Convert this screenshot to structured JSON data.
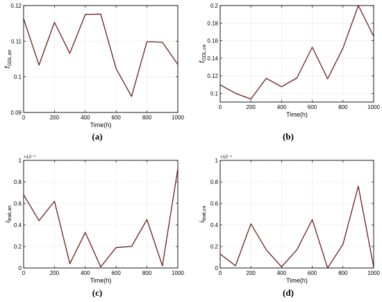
{
  "chart_data": [
    {
      "type": "line",
      "panel_label": "(a)",
      "ylabel_main": "f",
      "ylabel_sub": "GDL,an",
      "xlabel": "Time(h)",
      "exponent": "",
      "xlim": [
        0,
        1000
      ],
      "ylim": [
        0.09,
        0.12
      ],
      "x_ticks": [
        0,
        200,
        400,
        600,
        800,
        1000
      ],
      "x_tick_labels": [
        "0",
        "200",
        "400",
        "600",
        "800",
        "1000"
      ],
      "y_ticks": [
        0.09,
        0.1,
        0.11,
        0.12
      ],
      "y_tick_labels": [
        "0.09",
        "0.1",
        "0.11",
        "0.12"
      ],
      "grid": true,
      "line_color": "#6b1d1d",
      "series": [
        {
          "x": [
            0,
            100,
            200,
            300,
            400,
            500,
            600,
            700,
            800,
            900,
            1000
          ],
          "y": [
            0.1163,
            0.1033,
            0.1153,
            0.1066,
            0.1175,
            0.1176,
            0.1023,
            0.0945,
            0.1099,
            0.1097,
            0.1035
          ]
        }
      ]
    },
    {
      "type": "line",
      "panel_label": "(b)",
      "ylabel_main": "f",
      "ylabel_sub": "GDL,ca",
      "xlabel": "Time(h)",
      "exponent": "",
      "xlim": [
        0,
        1000
      ],
      "ylim": [
        0.09,
        0.2
      ],
      "x_ticks": [
        0,
        200,
        400,
        600,
        800,
        1000
      ],
      "x_tick_labels": [
        "0",
        "200",
        "400",
        "600",
        "800",
        "1000"
      ],
      "y_ticks": [
        0.1,
        0.12,
        0.14,
        0.16,
        0.18,
        0.2
      ],
      "y_tick_labels": [
        "0.1",
        "0.12",
        "0.14",
        "0.16",
        "0.18",
        "0.2"
      ],
      "grid": true,
      "line_color": "#6b1d1d",
      "series": [
        {
          "x": [
            0,
            100,
            200,
            300,
            400,
            500,
            600,
            700,
            800,
            900,
            1000
          ],
          "y": [
            0.1095,
            0.1,
            0.0935,
            0.117,
            0.1075,
            0.1175,
            0.1525,
            0.1165,
            0.1515,
            0.2,
            0.165
          ]
        }
      ]
    },
    {
      "type": "line",
      "panel_label": "(c)",
      "ylabel_main": "i",
      "ylabel_sub": "leak,an",
      "xlabel": "Time(h)",
      "exponent": "×10⁻³",
      "xlim": [
        0,
        1000
      ],
      "ylim": [
        0,
        1
      ],
      "x_ticks": [
        0,
        200,
        400,
        600,
        800,
        1000
      ],
      "x_tick_labels": [
        "0",
        "200",
        "400",
        "600",
        "800",
        "1000"
      ],
      "y_ticks": [
        0,
        0.2,
        0.4,
        0.6,
        0.8,
        1
      ],
      "y_tick_labels": [
        "0",
        "0.2",
        "0.4",
        "0.6",
        "0.8",
        "1"
      ],
      "grid": true,
      "line_color": "#6b1d1d",
      "series": [
        {
          "x": [
            0,
            100,
            200,
            300,
            400,
            500,
            600,
            700,
            800,
            900,
            1000
          ],
          "y": [
            0.68,
            0.44,
            0.62,
            0.04,
            0.33,
            0.01,
            0.19,
            0.2,
            0.45,
            0.02,
            0.92
          ]
        }
      ]
    },
    {
      "type": "line",
      "panel_label": "(d)",
      "ylabel_main": "i",
      "ylabel_sub": "leak,ca",
      "xlabel": "Time(h)",
      "exponent": "×10⁻³",
      "xlim": [
        0,
        1000
      ],
      "ylim": [
        0,
        1
      ],
      "x_ticks": [
        0,
        200,
        400,
        600,
        800,
        1000
      ],
      "x_tick_labels": [
        "0",
        "200",
        "400",
        "600",
        "800",
        "1000"
      ],
      "y_ticks": [
        0,
        0.2,
        0.4,
        0.6,
        0.8,
        1
      ],
      "y_tick_labels": [
        "0",
        "0.2",
        "0.4",
        "0.6",
        "0.8",
        "1"
      ],
      "grid": true,
      "line_color": "#6b1d1d",
      "series": [
        {
          "x": [
            0,
            100,
            200,
            300,
            400,
            500,
            600,
            700,
            800,
            900,
            1000
          ],
          "y": [
            0.13,
            0.02,
            0.41,
            0.17,
            0.01,
            0.17,
            0.45,
            0.0,
            0.22,
            0.76,
            0.01
          ]
        }
      ]
    }
  ]
}
